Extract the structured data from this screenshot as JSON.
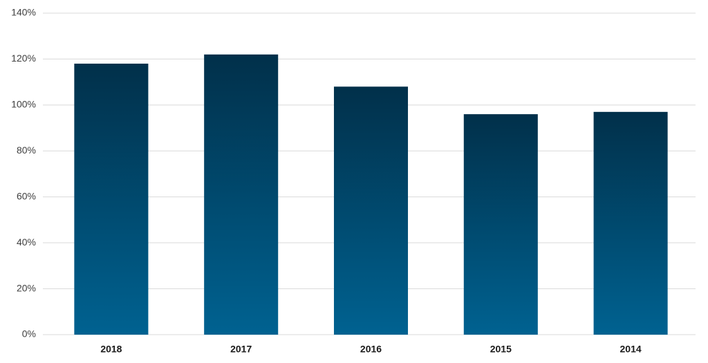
{
  "chart_data": {
    "type": "bar",
    "categories": [
      "2018",
      "2017",
      "2016",
      "2015",
      "2014"
    ],
    "values": [
      118,
      122,
      108,
      96,
      97
    ],
    "gradient": [
      "#01304a",
      "#006291"
    ],
    "ylim": [
      0,
      140
    ],
    "yticks": [
      {
        "value": 0,
        "label": "0%"
      },
      {
        "value": 20,
        "label": "20%"
      },
      {
        "value": 40,
        "label": "40%"
      },
      {
        "value": 60,
        "label": "60%"
      },
      {
        "value": 80,
        "label": "80%"
      },
      {
        "value": 100,
        "label": "100%"
      },
      {
        "value": 120,
        "label": "120%"
      },
      {
        "value": 140,
        "label": "140%"
      }
    ],
    "grid": true
  }
}
